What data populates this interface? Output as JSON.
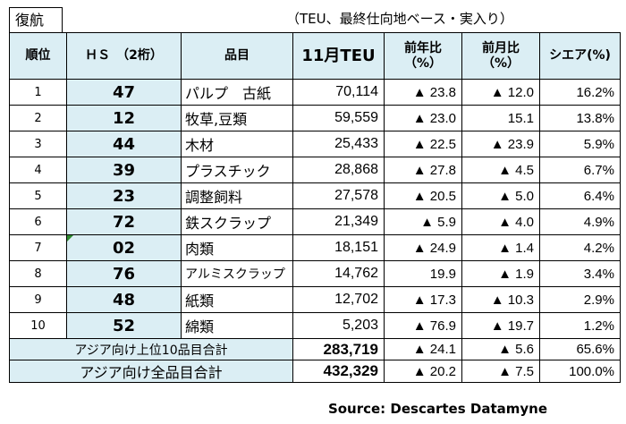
{
  "header": {
    "tab_label": "復航",
    "unit_note": "（TEU、最終仕向地ベース・実入り）"
  },
  "table": {
    "columns": {
      "rank": "順位",
      "hs": "ＨＳ　（2桁）",
      "item": "品目",
      "teu": "11月TEU",
      "yoy_line1": "前年比",
      "yoy_line2": "（%）",
      "mom_line1": "前月比",
      "mom_line2": "（%）",
      "share": "シエア(%)"
    },
    "rows": [
      {
        "rank": "1",
        "hs": "47",
        "item": "パルプ　古紙",
        "teu": "70,114",
        "yoy": "▲ 23.8",
        "mom": "▲ 12.0",
        "share": "16.2%"
      },
      {
        "rank": "2",
        "hs": "12",
        "item": "牧草,豆類",
        "teu": "59,559",
        "yoy": "▲ 23.0",
        "mom": "15.1",
        "share": "13.8%"
      },
      {
        "rank": "3",
        "hs": "44",
        "item": "木材",
        "teu": "25,433",
        "yoy": "▲ 22.5",
        "mom": "▲ 23.9",
        "share": "5.9%"
      },
      {
        "rank": "4",
        "hs": "39",
        "item": "プラスチック",
        "teu": "28,868",
        "yoy": "▲ 27.8",
        "mom": "▲ 4.5",
        "share": "6.7%"
      },
      {
        "rank": "5",
        "hs": "23",
        "item": "調整飼料",
        "teu": "27,578",
        "yoy": "▲ 20.5",
        "mom": "▲ 5.0",
        "share": "6.4%"
      },
      {
        "rank": "6",
        "hs": "72",
        "item": "鉄スクラップ",
        "teu": "21,349",
        "yoy": "▲ 5.9",
        "mom": "▲ 4.0",
        "share": "4.9%"
      },
      {
        "rank": "7",
        "hs": "02",
        "item": "肉類",
        "teu": "18,151",
        "yoy": "▲ 24.9",
        "mom": "▲ 1.4",
        "share": "4.2%"
      },
      {
        "rank": "8",
        "hs": "76",
        "item": "アルミスクラップ",
        "teu": "14,762",
        "yoy": "19.9",
        "mom": "▲ 1.9",
        "share": "3.4%"
      },
      {
        "rank": "9",
        "hs": "48",
        "item": "紙類",
        "teu": "12,702",
        "yoy": "▲ 17.3",
        "mom": "▲ 10.3",
        "share": "2.9%"
      },
      {
        "rank": "10",
        "hs": "52",
        "item": "綿類",
        "teu": "5,203",
        "yoy": "▲ 76.9",
        "mom": "▲ 19.7",
        "share": "1.2%"
      }
    ],
    "totals": [
      {
        "label": "アジア向け上位10品目合計",
        "teu": "283,719",
        "yoy": "▲ 24.1",
        "mom": "▲ 5.6",
        "share": "65.6%"
      },
      {
        "label": "アジア向け全品目合計",
        "teu": "432,329",
        "yoy": "▲ 20.2",
        "mom": "▲ 7.5",
        "share": "100.0%"
      }
    ]
  },
  "footer": {
    "source": "Source: Descartes Datamyne"
  },
  "colors": {
    "header_fill": "#dbeef4",
    "marker": "#2e8b2e"
  }
}
